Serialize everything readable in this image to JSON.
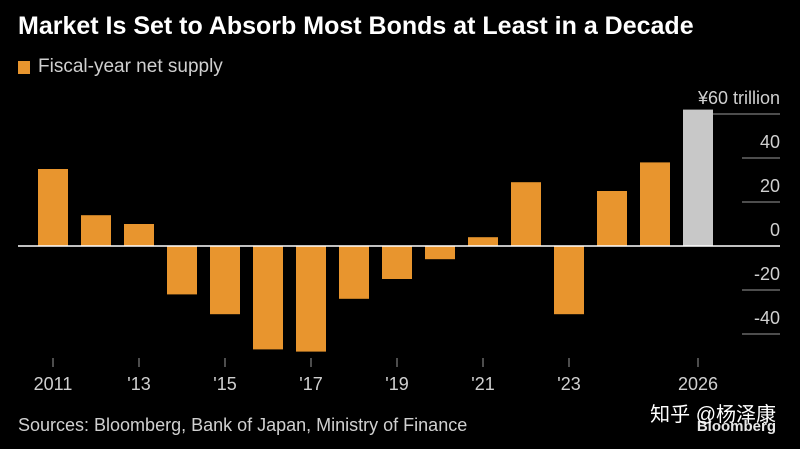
{
  "chart_data": {
    "type": "bar",
    "title": "Market Is Set to Absorb Most Bonds at Least in a Decade",
    "x": [
      2011,
      2012,
      2013,
      2014,
      2015,
      2016,
      2017,
      2018,
      2019,
      2020,
      2021,
      2022,
      2023,
      2024,
      2025,
      2026
    ],
    "series": [
      {
        "name": "Fiscal-year net supply",
        "values": [
          35,
          14,
          10,
          -22,
          -31,
          -47,
          -48,
          -24,
          -15,
          -6,
          4,
          29,
          -31,
          25,
          38,
          62
        ]
      }
    ],
    "highlight_index": 15,
    "x_tick_labels": [
      {
        "x": 2011,
        "label": "2011"
      },
      {
        "x": 2013,
        "label": "'13"
      },
      {
        "x": 2015,
        "label": "'15"
      },
      {
        "x": 2017,
        "label": "'17"
      },
      {
        "x": 2019,
        "label": "'19"
      },
      {
        "x": 2021,
        "label": "'21"
      },
      {
        "x": 2023,
        "label": "'23"
      },
      {
        "x": 2026,
        "label": "2026"
      }
    ],
    "y_ticks": [
      {
        "value": 60,
        "label": "¥60 trillion"
      },
      {
        "value": 40,
        "label": "40"
      },
      {
        "value": 20,
        "label": "20"
      },
      {
        "value": 0,
        "label": "0"
      },
      {
        "value": -20,
        "label": "-20"
      },
      {
        "value": -40,
        "label": "-40"
      }
    ],
    "ylim": [
      -50,
      65
    ],
    "legend_position": "top-left"
  },
  "source": "Sources: Bloomberg, Bank of Japan, Ministry of Finance",
  "watermark": {
    "text": "知乎 @杨泽康",
    "logo": "Bloomberg"
  },
  "colors": {
    "background": "#000000",
    "bar": "#e8952e",
    "highlight": "#c8c8c8",
    "text": "#d0d0d0",
    "title": "#ffffff",
    "zero_line": "#ffffff",
    "grid": "#9a9a9a"
  }
}
